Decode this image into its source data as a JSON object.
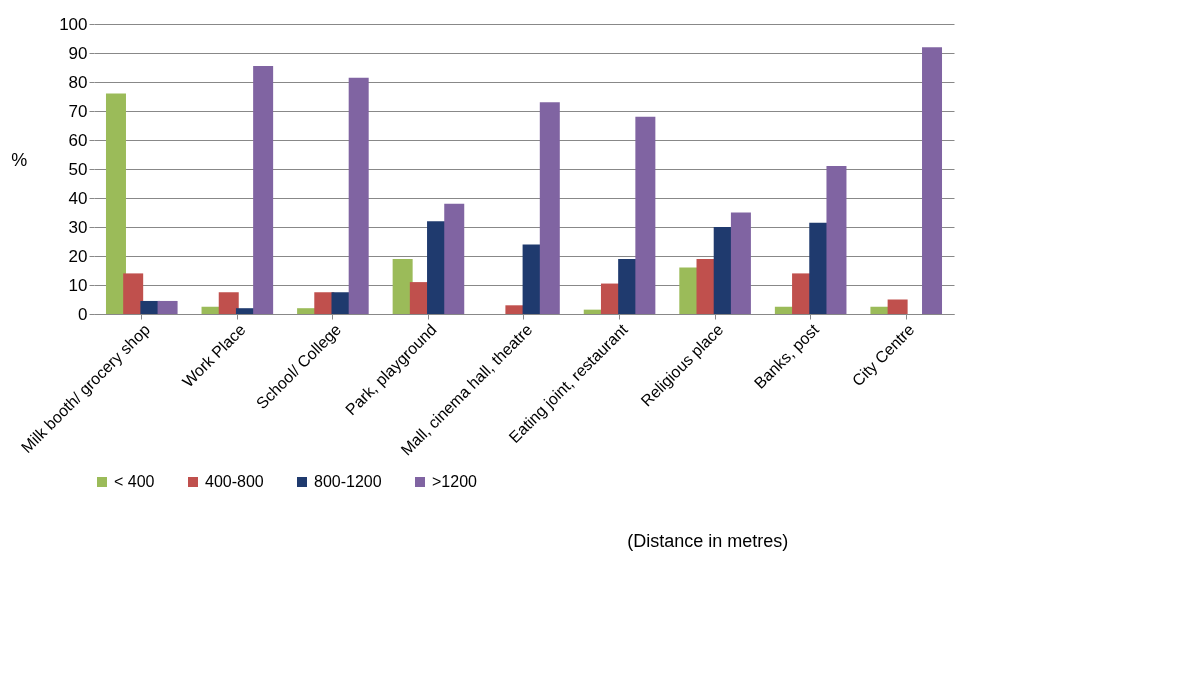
{
  "chart_data": {
    "type": "bar",
    "categories": [
      "Milk booth/ grocery shop",
      "Work Place",
      "School/ College",
      "Park, playground",
      "Mall, cinema hall, theatre",
      "Eating joint, restaurant",
      "Religious place",
      "Banks, post",
      "City Centre"
    ],
    "series": [
      {
        "name": "< 400",
        "color": "#9bbb59",
        "values": [
          76,
          2.5,
          2,
          19,
          null,
          1.5,
          16,
          2.5,
          2.5
        ]
      },
      {
        "name": "400-800",
        "color": "#c0504d",
        "values": [
          14,
          7.5,
          7.5,
          11,
          3,
          10.5,
          19,
          14,
          5
        ]
      },
      {
        "name": "800-1200",
        "color": "#1f3a6e",
        "values": [
          4.5,
          2,
          7.5,
          32,
          24,
          19,
          30,
          31.5,
          null
        ]
      },
      {
        "name": ">1200",
        "color": "#8064a2",
        "values": [
          4.5,
          85.5,
          81.5,
          38,
          73,
          68,
          35,
          51,
          92
        ]
      }
    ],
    "ylabel": "%",
    "ylim": [
      0,
      100
    ],
    "yticks": [
      0,
      10,
      20,
      30,
      40,
      50,
      60,
      70,
      80,
      90,
      100
    ],
    "grid": "y",
    "legend": "bottom",
    "annotations": [
      "(Distance in metres)"
    ]
  }
}
